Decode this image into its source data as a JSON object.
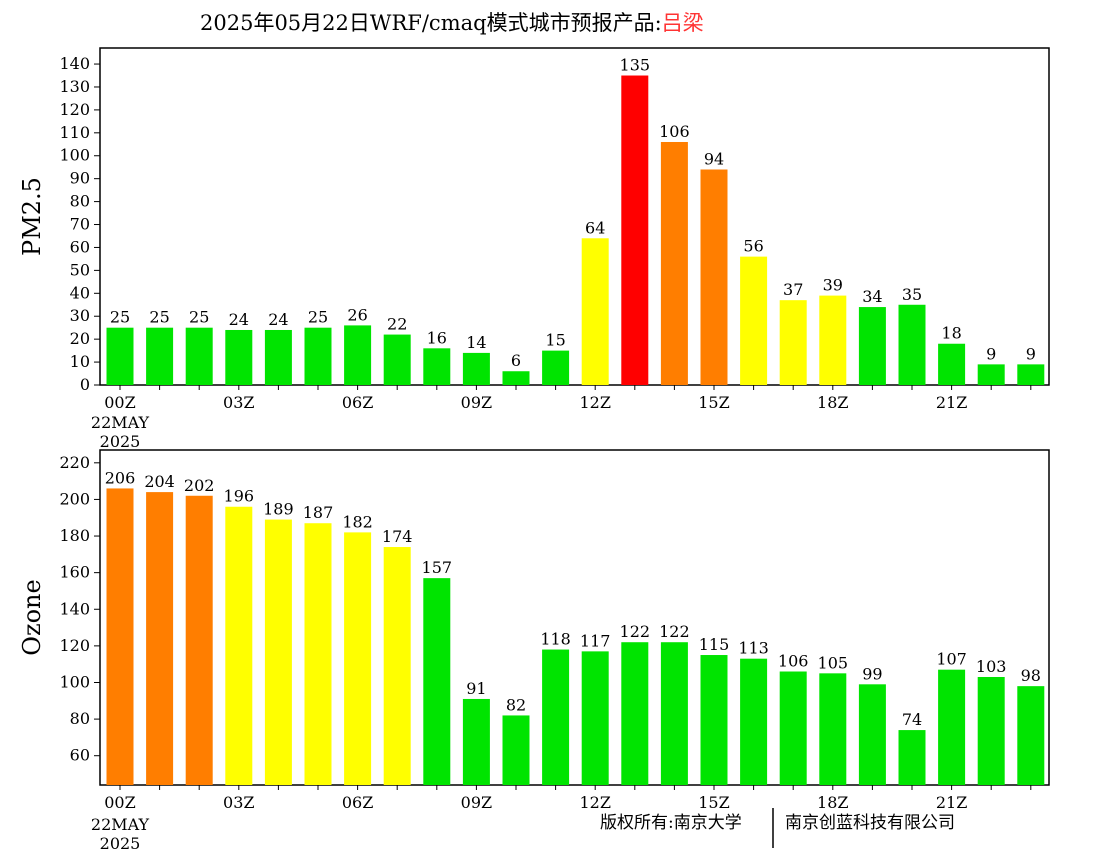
{
  "title": {
    "prefix": "2025年05月22日WRF/cmaq模式城市预报产品:",
    "city": "吕梁",
    "city_color": "#ff3333"
  },
  "footer": {
    "left": "版权所有:南京大学",
    "right": "南京创蓝科技有限公司"
  },
  "colors": {
    "green": "#00e400",
    "yellow": "#ffff00",
    "orange": "#ff7e00",
    "red": "#ff0000"
  },
  "chart_data": [
    {
      "type": "bar",
      "ylabel": "PM2.5",
      "ylim": [
        0,
        147
      ],
      "yticks": [
        0,
        10,
        20,
        30,
        40,
        50,
        60,
        70,
        80,
        90,
        100,
        110,
        120,
        130,
        140
      ],
      "x_tick_labels": [
        "00Z",
        "03Z",
        "06Z",
        "09Z",
        "12Z",
        "15Z",
        "18Z",
        "21Z"
      ],
      "x_tick_sublabels": [
        "22MAY",
        "2025"
      ],
      "hours": [
        0,
        1,
        2,
        3,
        4,
        5,
        6,
        7,
        8,
        9,
        10,
        11,
        12,
        13,
        14,
        15,
        16,
        17,
        18,
        19,
        20,
        21,
        22,
        23
      ],
      "values": [
        25,
        25,
        25,
        24,
        24,
        25,
        26,
        22,
        16,
        14,
        6,
        15,
        64,
        135,
        106,
        94,
        56,
        37,
        39,
        34,
        35,
        18,
        9,
        9
      ],
      "bar_colors": [
        "green",
        "green",
        "green",
        "green",
        "green",
        "green",
        "green",
        "green",
        "green",
        "green",
        "green",
        "green",
        "yellow",
        "red",
        "orange",
        "orange",
        "yellow",
        "yellow",
        "yellow",
        "green",
        "green",
        "green",
        "green",
        "green"
      ],
      "grid": false
    },
    {
      "type": "bar",
      "ylabel": "Ozone",
      "ylim": [
        44,
        227
      ],
      "yticks": [
        60,
        80,
        100,
        120,
        140,
        160,
        180,
        200,
        220
      ],
      "x_tick_labels": [
        "00Z",
        "03Z",
        "06Z",
        "09Z",
        "12Z",
        "15Z",
        "18Z",
        "21Z"
      ],
      "x_tick_sublabels": [
        "22MAY",
        "2025"
      ],
      "hours": [
        0,
        1,
        2,
        3,
        4,
        5,
        6,
        7,
        8,
        9,
        10,
        11,
        12,
        13,
        14,
        15,
        16,
        17,
        18,
        19,
        20,
        21,
        22,
        23
      ],
      "values": [
        206,
        204,
        202,
        196,
        189,
        187,
        182,
        174,
        157,
        91,
        82,
        118,
        117,
        122,
        122,
        115,
        113,
        106,
        105,
        99,
        74,
        107,
        103,
        98
      ],
      "bar_colors": [
        "orange",
        "orange",
        "orange",
        "yellow",
        "yellow",
        "yellow",
        "yellow",
        "yellow",
        "green",
        "green",
        "green",
        "green",
        "green",
        "green",
        "green",
        "green",
        "green",
        "green",
        "green",
        "green",
        "green",
        "green",
        "green",
        "green"
      ],
      "grid": false
    }
  ]
}
